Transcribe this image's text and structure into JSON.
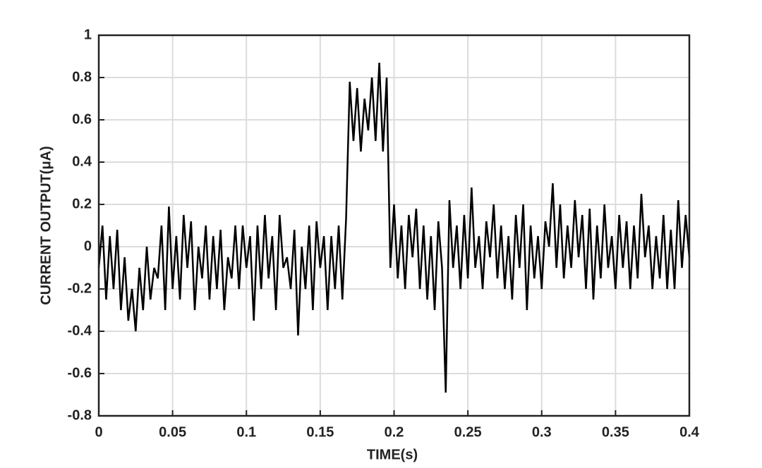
{
  "chart_data": {
    "type": "line",
    "xlabel": "TIME(s)",
    "ylabel": "CURRENT OUTPUT(μA)",
    "color": "#000000",
    "grid": true,
    "xlim": [
      0,
      0.4
    ],
    "xticks": [
      0,
      0.05,
      0.1,
      0.15,
      0.2,
      0.25,
      0.3,
      0.35,
      0.4
    ],
    "ylim": [
      -0.8,
      1
    ],
    "yticks": [
      -0.8,
      -0.6,
      -0.4,
      -0.2,
      0,
      0.2,
      0.4,
      0.6,
      0.8,
      1
    ],
    "x": [
      0,
      0.0025,
      0.005,
      0.0075,
      0.01,
      0.0125,
      0.015,
      0.0175,
      0.02,
      0.0225,
      0.025,
      0.0275,
      0.03,
      0.0325,
      0.035,
      0.0375,
      0.04,
      0.0425,
      0.045,
      0.0475,
      0.05,
      0.0525,
      0.055,
      0.0575,
      0.06,
      0.0625,
      0.065,
      0.0675,
      0.07,
      0.0725,
      0.075,
      0.0775,
      0.08,
      0.0825,
      0.085,
      0.0875,
      0.09,
      0.0925,
      0.095,
      0.0975,
      0.1,
      0.1025,
      0.105,
      0.1075,
      0.11,
      0.1125,
      0.115,
      0.1175,
      0.12,
      0.1225,
      0.125,
      0.1275,
      0.13,
      0.1325,
      0.135,
      0.1375,
      0.14,
      0.1425,
      0.145,
      0.1475,
      0.15,
      0.1525,
      0.155,
      0.1575,
      0.16,
      0.1625,
      0.165,
      0.1675,
      0.17,
      0.1725,
      0.175,
      0.1775,
      0.18,
      0.1825,
      0.185,
      0.1875,
      0.19,
      0.1925,
      0.195,
      0.1975,
      0.2,
      0.2025,
      0.205,
      0.2075,
      0.21,
      0.2125,
      0.215,
      0.2175,
      0.22,
      0.2225,
      0.225,
      0.2275,
      0.23,
      0.2325,
      0.235,
      0.2375,
      0.24,
      0.2425,
      0.245,
      0.2475,
      0.25,
      0.2525,
      0.255,
      0.2575,
      0.26,
      0.2625,
      0.265,
      0.2675,
      0.27,
      0.2725,
      0.275,
      0.2775,
      0.28,
      0.2825,
      0.285,
      0.2875,
      0.29,
      0.2925,
      0.295,
      0.2975,
      0.3,
      0.3025,
      0.305,
      0.3075,
      0.31,
      0.3125,
      0.315,
      0.3175,
      0.32,
      0.3225,
      0.325,
      0.3275,
      0.33,
      0.3325,
      0.335,
      0.3375,
      0.34,
      0.3425,
      0.345,
      0.3475,
      0.35,
      0.3525,
      0.355,
      0.3575,
      0.36,
      0.3625,
      0.365,
      0.3675,
      0.37,
      0.3725,
      0.375,
      0.3775,
      0.38,
      0.3825,
      0.385,
      0.3875,
      0.39,
      0.3925,
      0.395,
      0.3975,
      0.4
    ],
    "values": [
      -0.1,
      0.1,
      -0.25,
      0.05,
      -0.2,
      0.08,
      -0.3,
      -0.05,
      -0.35,
      -0.2,
      -0.4,
      -0.1,
      -0.3,
      0.0,
      -0.25,
      -0.1,
      -0.15,
      0.1,
      -0.3,
      0.19,
      -0.2,
      0.05,
      -0.25,
      0.15,
      -0.1,
      0.12,
      -0.3,
      0.0,
      -0.15,
      0.1,
      -0.25,
      0.05,
      -0.2,
      0.08,
      -0.3,
      -0.05,
      -0.15,
      0.1,
      -0.2,
      0.1,
      -0.1,
      0.05,
      -0.35,
      0.1,
      -0.2,
      0.15,
      -0.15,
      0.05,
      -0.3,
      0.15,
      -0.1,
      -0.05,
      -0.2,
      0.08,
      -0.42,
      0.0,
      -0.2,
      0.1,
      -0.3,
      0.12,
      -0.1,
      0.05,
      -0.3,
      0.05,
      -0.2,
      0.1,
      -0.25,
      0.13,
      0.78,
      0.5,
      0.75,
      0.45,
      0.7,
      0.55,
      0.8,
      0.5,
      0.87,
      0.45,
      0.8,
      -0.1,
      0.2,
      -0.15,
      0.1,
      -0.2,
      0.15,
      -0.05,
      0.18,
      -0.2,
      0.1,
      -0.25,
      0.05,
      -0.3,
      0.12,
      -0.1,
      -0.69,
      0.22,
      -0.1,
      0.1,
      -0.2,
      0.15,
      -0.15,
      0.28,
      -0.1,
      0.05,
      -0.2,
      0.12,
      -0.05,
      0.2,
      -0.15,
      0.1,
      -0.2,
      0.05,
      -0.25,
      0.15,
      -0.1,
      0.2,
      -0.3,
      0.1,
      -0.15,
      0.05,
      -0.2,
      0.12,
      0.0,
      0.3,
      -0.1,
      0.2,
      -0.15,
      0.1,
      -0.1,
      0.22,
      -0.05,
      0.15,
      -0.2,
      0.18,
      -0.25,
      0.1,
      -0.15,
      0.2,
      -0.1,
      0.05,
      -0.2,
      0.15,
      -0.1,
      0.12,
      -0.2,
      0.1,
      -0.15,
      0.25,
      -0.05,
      0.1,
      -0.2,
      0.05,
      -0.15,
      0.15,
      -0.2,
      0.08,
      -0.2,
      0.22,
      -0.1,
      0.15,
      -0.05
    ]
  }
}
